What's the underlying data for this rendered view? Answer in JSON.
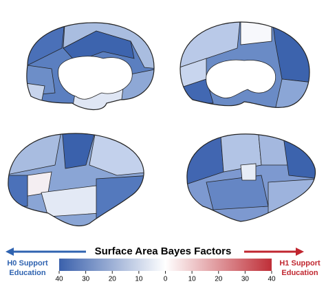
{
  "title": "Surface Area Bayes Factors",
  "left_label": {
    "line1": "H0 Support",
    "line2": "Education"
  },
  "right_label": {
    "line1": "H1 Support",
    "line2": "Education"
  },
  "colorbar": {
    "ticks": [
      40,
      30,
      20,
      10,
      0,
      10,
      20,
      30,
      40
    ]
  }
}
